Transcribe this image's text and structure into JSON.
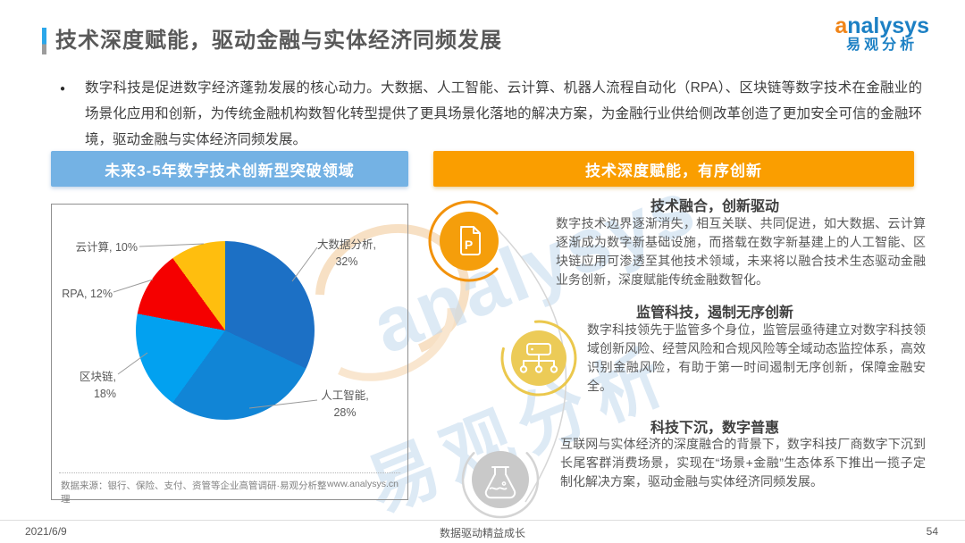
{
  "page": {
    "title": "技术深度赋能，驱动金融与实体经济同频发展",
    "bullet_text": "数字科技是促进数字经济蓬勃发展的核心动力。大数据、人工智能、云计算、机器人流程自动化（RPA）、区块链等数字技术在金融业的场景化应用和创新，为传统金融机构数智化转型提供了更具场景化落地的解决方案，为金融行业供给侧改革创造了更加安全可信的金融环境，驱动金融与实体经济同频发展。",
    "footer": {
      "date": "2021/6/9",
      "slogan": "数据驱动精益成长",
      "page_number": "54"
    }
  },
  "logo": {
    "brand": "analysys",
    "brand_cn": "易观分析",
    "brand_color": "#1c80c4",
    "accent_color": "#f08519"
  },
  "left_panel": {
    "header": "未来3-5年数字技术创新型突破领域",
    "header_color": "#74B2E4",
    "source": "数据来源：银行、保险、支付、资管等企业高管调研·易观分析整理",
    "website": "www.analysys.cn"
  },
  "chart_data": {
    "type": "pie",
    "title": "未来3-5年数字技术创新型突破领域",
    "labels": [
      "大数据分析",
      "人工智能",
      "区块链",
      "RPA",
      "云计算"
    ],
    "values": [
      32,
      28,
      18,
      12,
      10
    ],
    "unit": "%",
    "colors": [
      "#1C70C5",
      "#1185D6",
      "#02A1F0",
      "#F50000",
      "#FFBE0E"
    ],
    "start_angle_deg": 0,
    "direction": "clockwise",
    "legend_position": "none"
  },
  "right_panel": {
    "header": "技术深度赋能，有序创新",
    "header_color": "#FA9E00",
    "sections": [
      {
        "icon": "document-p-icon",
        "icon_letter": "P",
        "icon_color": "#F59E0B",
        "title": "技术融合，创新驱动",
        "body": "数字技术边界逐渐消失，相互关联、共同促进，如大数据、云计算逐渐成为数字新基础设施，而搭载在数字新基建上的人工智能、区块链应用可渗透至其他技术领域，未来将以融合技术生态驱动金融业务创新，深度赋能传统金融数智化。"
      },
      {
        "icon": "flowchart-icon",
        "icon_color": "#ECCB57",
        "title": "监管科技，遏制无序创新",
        "body": "数字科技领先于监管多个身位，监管层亟待建立对数字科技领域创新风险、经营风险和合规风险等全域动态监控体系，高效识别金融风险，有助于第一时间遏制无序创新，保障金融安全。"
      },
      {
        "icon": "flask-icon",
        "icon_color": "#C9C9C9",
        "title": "科技下沉，数字普惠",
        "body": "互联网与实体经济的深度融合的背景下，数字科技厂商数字下沉到长尾客群消费场景，实现在“场景+金融”生态体系下推出一揽子定制化解决方案，驱动金融与实体经济同频发展。"
      }
    ]
  }
}
